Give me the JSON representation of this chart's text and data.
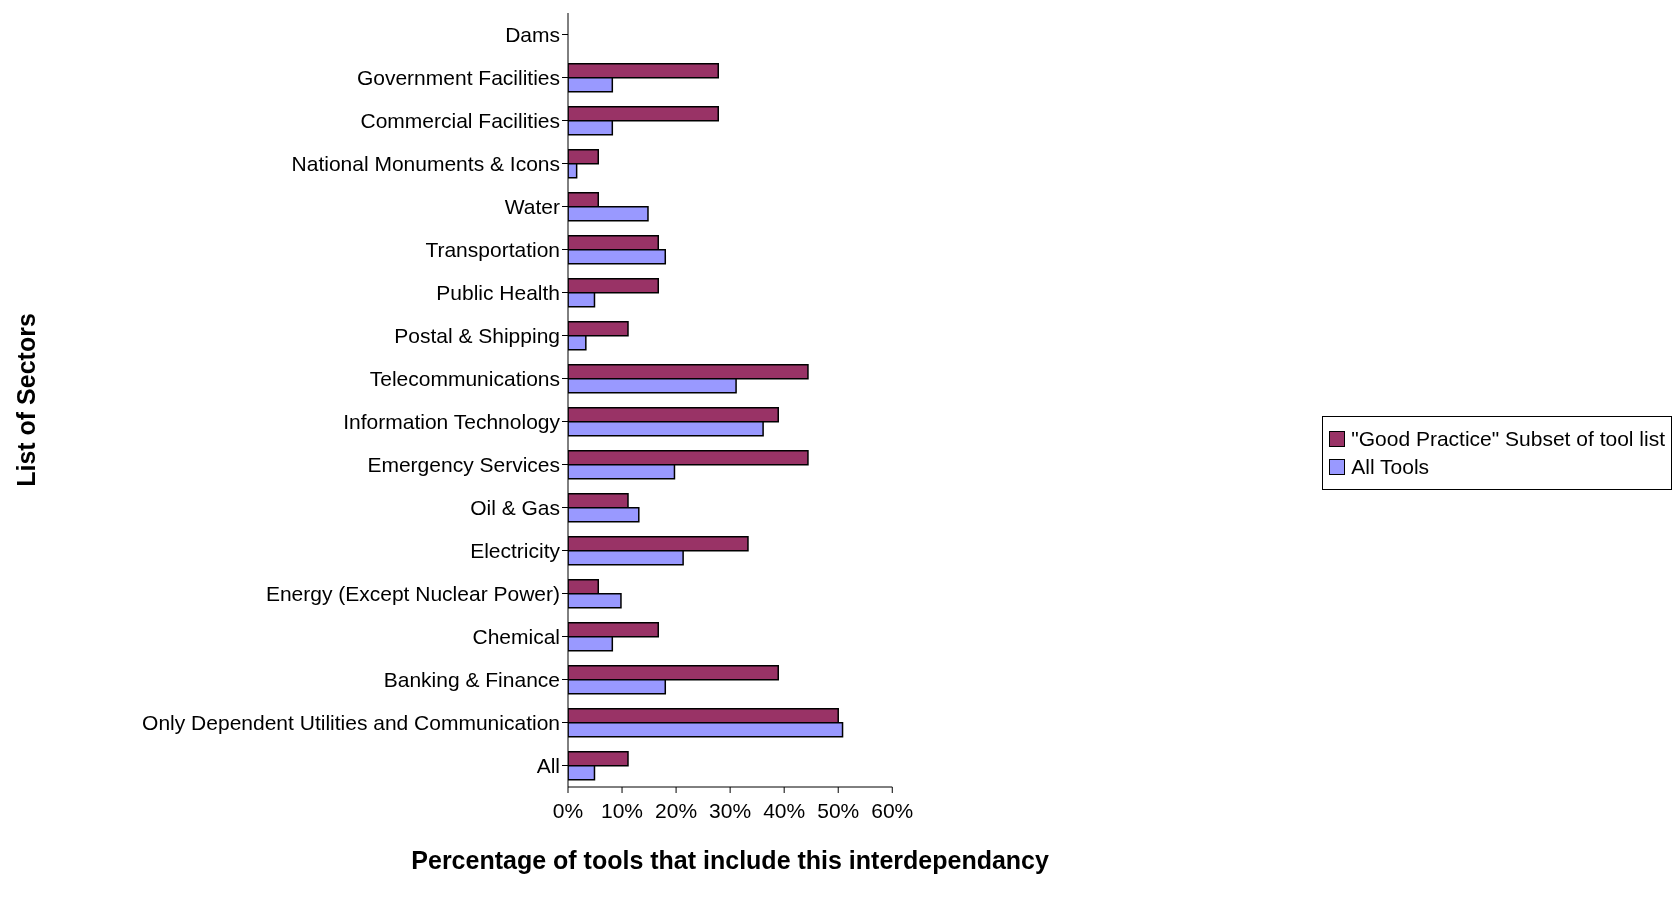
{
  "chart_data": {
    "type": "bar",
    "orientation": "horizontal",
    "xlabel": "Percentage of tools that include this interdependancy",
    "ylabel": "List of Sectors",
    "categories": [
      "Dams",
      "Government Facilities",
      "Commercial Facilities",
      "National Monuments & Icons",
      "Water",
      "Transportation",
      "Public Health",
      "Postal & Shipping",
      "Telecommunications",
      "Information Technology",
      "Emergency Services",
      "Oil & Gas",
      "Electricity",
      "Energy (Except Nuclear Power)",
      "Chemical",
      "Banking & Finance",
      "Only Dependent Utilities and Communication",
      "All"
    ],
    "series": [
      {
        "name": "\"Good Practice\" Subset of tool list",
        "color": "#993366",
        "values": [
          0,
          27.8,
          27.8,
          5.6,
          5.6,
          16.7,
          16.7,
          11.1,
          44.4,
          38.9,
          44.4,
          11.1,
          33.3,
          5.6,
          16.7,
          38.9,
          50,
          11.1
        ]
      },
      {
        "name": "All Tools",
        "color": "#9999ff",
        "values": [
          0,
          8.2,
          8.2,
          1.6,
          14.8,
          18.0,
          4.9,
          3.3,
          31.1,
          36.1,
          19.7,
          13.1,
          21.3,
          9.8,
          8.2,
          18.0,
          50.8,
          4.9
        ]
      }
    ],
    "xlim": [
      0,
      60
    ],
    "xticks": [
      {
        "value": 0,
        "label": "0%"
      },
      {
        "value": 10,
        "label": "10%"
      },
      {
        "value": 20,
        "label": "20%"
      },
      {
        "value": 30,
        "label": "30%"
      },
      {
        "value": 40,
        "label": "40%"
      },
      {
        "value": 50,
        "label": "50%"
      },
      {
        "value": 60,
        "label": "60%"
      }
    ],
    "grid": false,
    "legend": "right"
  }
}
